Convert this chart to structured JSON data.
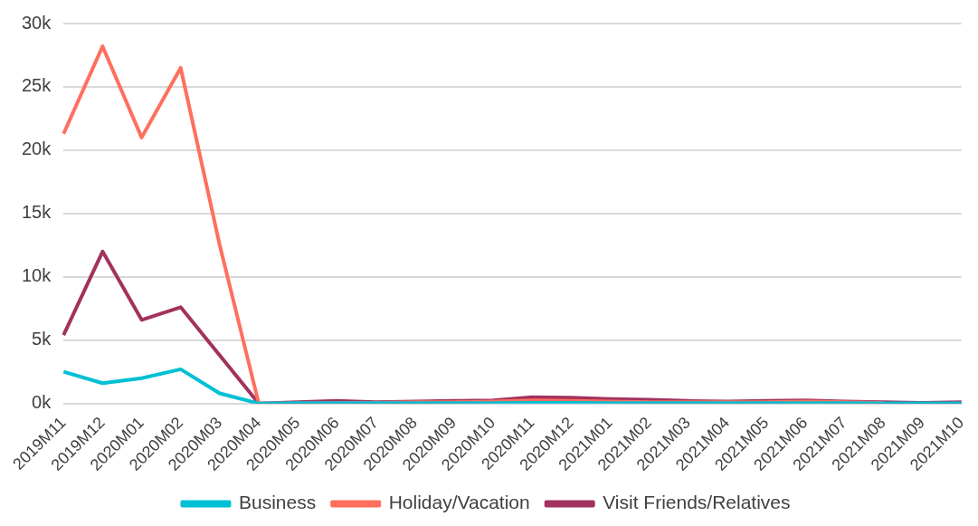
{
  "chart_data": {
    "type": "line",
    "categories": [
      "2019M11",
      "2019M12",
      "2020M01",
      "2020M02",
      "2020M03",
      "2020M04",
      "2020M05",
      "2020M06",
      "2020M07",
      "2020M08",
      "2020M09",
      "2020M10",
      "2020M11",
      "2020M12",
      "2021M01",
      "2021M02",
      "2021M03",
      "2021M04",
      "2021M05",
      "2021M06",
      "2021M07",
      "2021M08",
      "2021M09",
      "2021M10"
    ],
    "series": [
      {
        "name": "Business",
        "color": "#00c0d4",
        "values": [
          2500,
          1600,
          2000,
          2700,
          800,
          0,
          20,
          30,
          20,
          20,
          30,
          30,
          40,
          40,
          30,
          30,
          20,
          20,
          20,
          20,
          20,
          10,
          10,
          10
        ]
      },
      {
        "name": "Holiday/Vacation",
        "color": "#ff6f5e",
        "values": [
          21300,
          28200,
          21000,
          26500,
          12500,
          0,
          0,
          50,
          50,
          100,
          100,
          150,
          250,
          200,
          150,
          100,
          100,
          100,
          100,
          150,
          100,
          50,
          null,
          null
        ]
      },
      {
        "name": "Visit Friends/Relatives",
        "color": "#a2325e",
        "values": [
          5400,
          12000,
          6600,
          7600,
          3800,
          0,
          100,
          200,
          100,
          150,
          200,
          250,
          500,
          450,
          350,
          300,
          200,
          150,
          200,
          250,
          150,
          100,
          50,
          100
        ]
      }
    ],
    "ylim": [
      0,
      30000
    ],
    "yticks": [
      {
        "value": 0,
        "label": "0k"
      },
      {
        "value": 5000,
        "label": "5k"
      },
      {
        "value": 10000,
        "label": "10k"
      },
      {
        "value": 15000,
        "label": "15k"
      },
      {
        "value": 20000,
        "label": "20k"
      },
      {
        "value": 25000,
        "label": "25k"
      },
      {
        "value": 30000,
        "label": "30k"
      }
    ],
    "grid": "y",
    "legend": "bottom",
    "marker": "none",
    "line_style": "solid"
  }
}
